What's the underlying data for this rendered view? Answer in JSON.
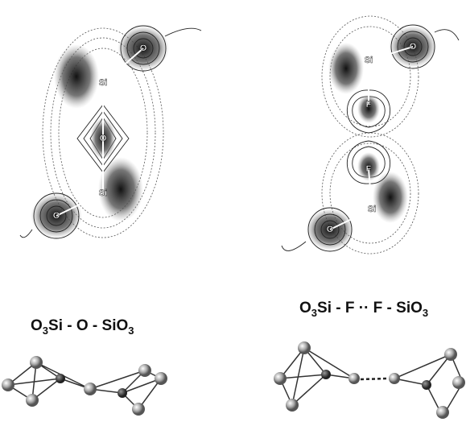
{
  "panels": [
    {
      "atoms": [
        "O",
        "Si",
        "O",
        "Si",
        "O"
      ],
      "caption": [
        "O",
        "3",
        "Si - O - SiO",
        "3"
      ]
    },
    {
      "atoms": [
        "O",
        "Si",
        "F",
        "F",
        "Si",
        "O"
      ],
      "caption": [
        "O",
        "3",
        "Si - F ·· F - SiO",
        "3"
      ]
    }
  ]
}
